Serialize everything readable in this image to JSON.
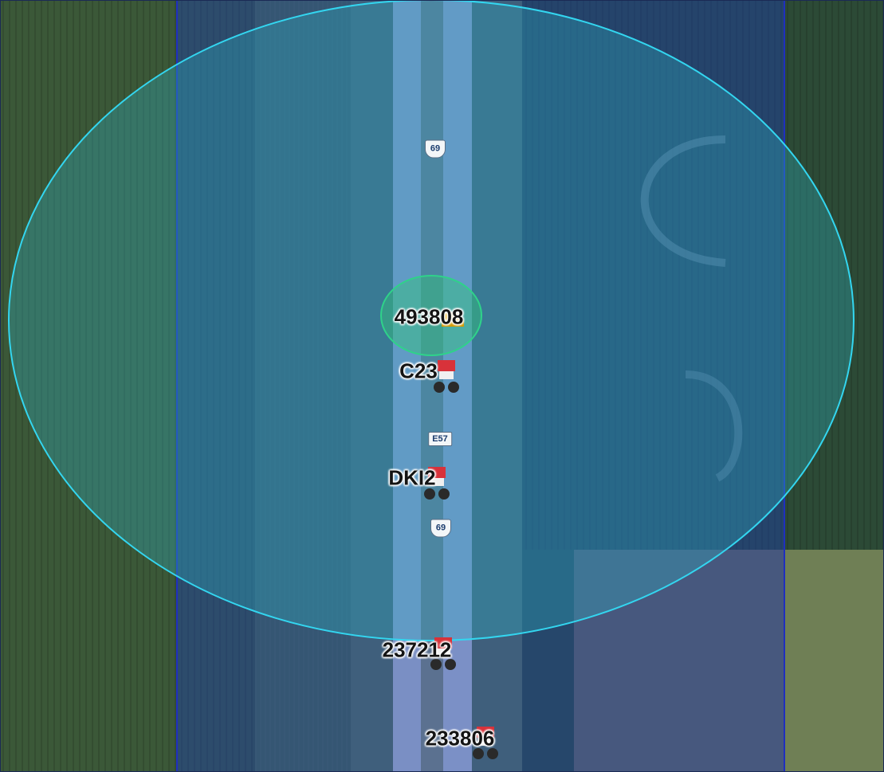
{
  "map": {
    "route_shields": [
      {
        "id": "us69-north",
        "text": "69",
        "style": "us"
      },
      {
        "id": "e57",
        "text": "E57",
        "style": "eh"
      },
      {
        "id": "us69-south",
        "text": "69",
        "style": "us"
      }
    ],
    "vehicles": [
      {
        "id": "493808",
        "label": "493808",
        "icon": "excavator-icon"
      },
      {
        "id": "C23",
        "label": "C23",
        "icon": "dump-truck-icon"
      },
      {
        "id": "DKI2",
        "label": "DKI2",
        "icon": "dump-truck-icon"
      },
      {
        "id": "237212",
        "label": "237212",
        "icon": "dump-truck-icon"
      },
      {
        "id": "233806",
        "label": "233806",
        "icon": "dump-truck-icon"
      }
    ],
    "overlays": {
      "rectangle_fill": "#1c3fae",
      "rectangle_stroke": "#1f2fbf",
      "large_circle_fill": "#2fb3c8",
      "large_circle_stroke": "#33d6f0",
      "small_circle_fill": "#33c47a",
      "small_circle_stroke": "#2fd28a"
    }
  }
}
